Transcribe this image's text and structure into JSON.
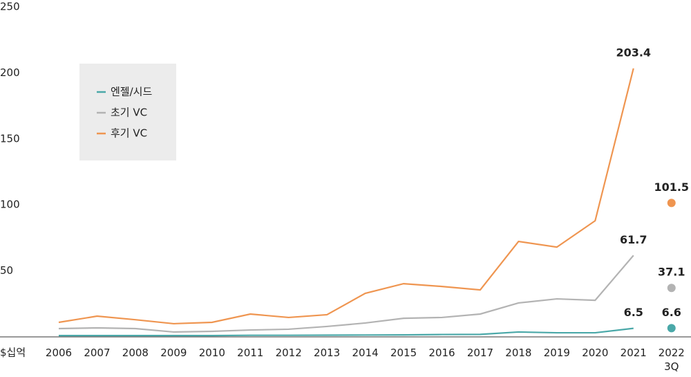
{
  "chart_data": {
    "type": "line",
    "y_axis_label": "$십억",
    "categories": [
      "2006",
      "2007",
      "2008",
      "2009",
      "2010",
      "2011",
      "2012",
      "2013",
      "2014",
      "2015",
      "2016",
      "2017",
      "2018",
      "2019",
      "2020",
      "2021",
      "2022\n3Q"
    ],
    "series": [
      {
        "name": "엔젤/시드",
        "color": "#4aa8a8",
        "values": [
          1.0,
          1.0,
          1.0,
          1.0,
          1.0,
          1.2,
          1.2,
          1.3,
          1.4,
          1.5,
          1.8,
          1.9,
          3.7,
          3.1,
          3.1,
          6.5,
          6.6
        ]
      },
      {
        "name": "초기 VC",
        "color": "#b3b3b3",
        "values": [
          6.3,
          6.8,
          6.3,
          3.7,
          4.2,
          5.2,
          5.8,
          7.9,
          10.5,
          14.1,
          14.7,
          17.3,
          25.7,
          28.8,
          27.7,
          61.7,
          37.1
        ]
      },
      {
        "name": "후기 VC",
        "color": "#ef9550",
        "values": [
          11.0,
          15.7,
          13.0,
          10.0,
          11.0,
          17.3,
          14.7,
          16.8,
          33.0,
          40.3,
          38.2,
          35.6,
          72.3,
          68.0,
          88.0,
          203.4,
          101.5
        ]
      }
    ],
    "labeled_points": [
      15,
      16
    ],
    "ylim": [
      0,
      250
    ],
    "yticks": [
      50,
      100,
      150,
      200,
      250
    ],
    "legend": "upper left"
  }
}
